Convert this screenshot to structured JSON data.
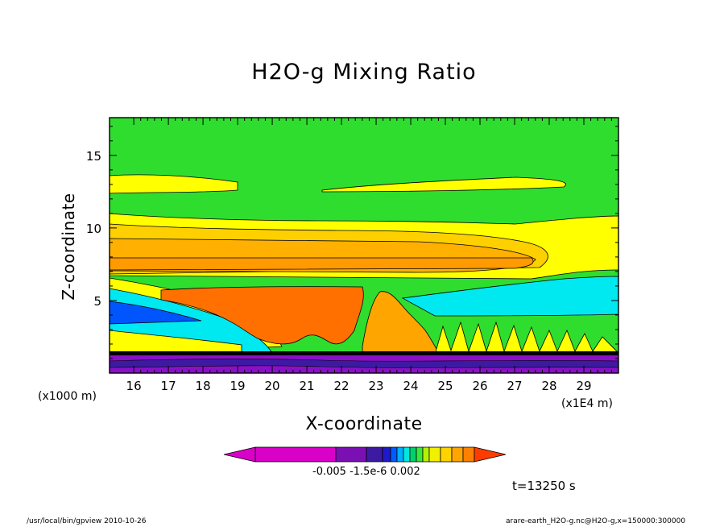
{
  "chart_data": {
    "type": "heatmap",
    "title": "H2O-g Mixing Ratio",
    "xlabel": "X-coordinate",
    "ylabel": "Z-coordinate",
    "x_unit_left": "(x1000 m)",
    "x_unit_right": "(x1E4 m)",
    "x_ticks": [
      "16",
      "17",
      "18",
      "19",
      "20",
      "21",
      "22",
      "23",
      "24",
      "25",
      "26",
      "27",
      "28",
      "29"
    ],
    "y_ticks": [
      "5",
      "10",
      "15"
    ],
    "xlim": [
      15.3,
      30
    ],
    "ylim": [
      0,
      17.6
    ],
    "colorbar": {
      "labels": [
        "-0.005",
        "-1.5e-6",
        "0.002"
      ],
      "colors": [
        "#d900c8",
        "#b200b0",
        "#7a10b4",
        "#3d1aa2",
        "#1f1ac8",
        "#005cff",
        "#00b0ff",
        "#00e8e0",
        "#00d070",
        "#3ae83a",
        "#b8f000",
        "#f0f000",
        "#ffd200",
        "#ffa500",
        "#ff8000",
        "#ff3c00"
      ]
    },
    "bands": [
      {
        "level": "background",
        "color": "#2fdd2f"
      },
      {
        "level": "upper-moist-layer",
        "color": "#ffff00"
      },
      {
        "level": "anvil-1",
        "color": "#ffdd00"
      },
      {
        "level": "anvil-2",
        "color": "#ffb000"
      },
      {
        "level": "anvil-3",
        "color": "#ff8800"
      },
      {
        "level": "core",
        "color": "#ff6a00"
      },
      {
        "level": "mid-cyan",
        "color": "#00e8f0"
      },
      {
        "level": "low-blue",
        "color": "#0055ff"
      },
      {
        "level": "surface-purple",
        "color": "#8a10c8"
      }
    ]
  },
  "annotations": {
    "time": "t=13250 s",
    "footer_left": "/usr/local/bin/gpview  2010-10-26",
    "footer_right": "arare-earth_H2O-g.nc@H2O-g,x=150000:300000"
  }
}
